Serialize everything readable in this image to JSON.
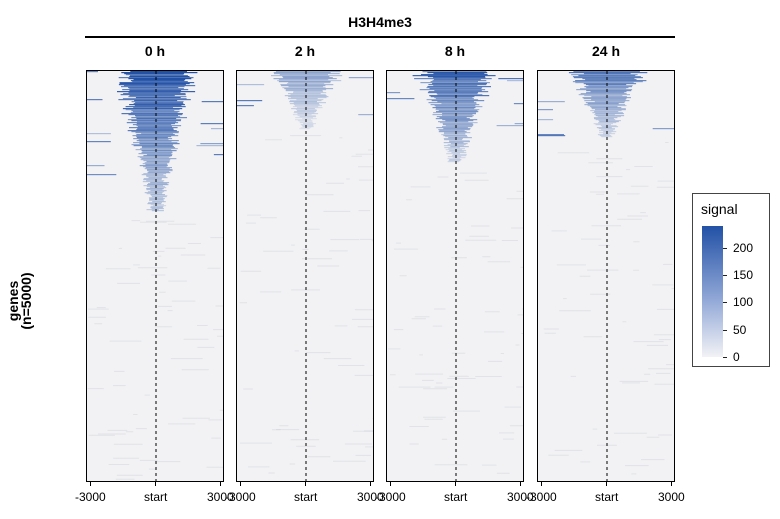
{
  "title": "H3H4me3",
  "ylabel_line1": "genes",
  "ylabel_line2": "(n=5000)",
  "colors": {
    "high": "#2251a6",
    "low": "#f2f2f4"
  },
  "chart_data": {
    "type": "heatmap",
    "title": "H3H4me3",
    "ylabel": "genes\n(n=5000)",
    "n_genes": 5000,
    "panels": [
      {
        "label": "0 h",
        "intensity": 1.0,
        "extent": 0.34
      },
      {
        "label": "2 h",
        "intensity": 0.45,
        "extent": 0.14
      },
      {
        "label": "8 h",
        "intensity": 0.85,
        "extent": 0.22
      },
      {
        "label": "24 h",
        "intensity": 0.7,
        "extent": 0.16
      }
    ],
    "x_ticks": [
      "-3000",
      "start",
      "3000"
    ],
    "x_range": [
      -3000,
      3000
    ],
    "reference_line": "start",
    "legend": {
      "title": "signal",
      "ticks": [
        "200",
        "150",
        "100",
        "50",
        "0"
      ],
      "range": [
        0,
        240
      ]
    }
  }
}
